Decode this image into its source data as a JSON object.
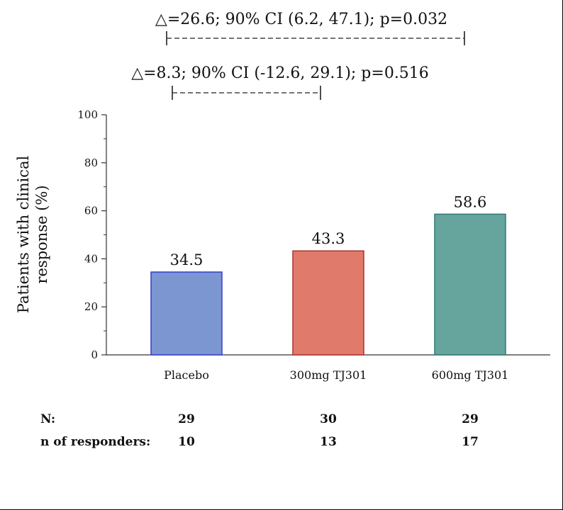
{
  "chart_data": {
    "type": "bar",
    "categories": [
      "Placebo",
      "300mg TJ301",
      "600mg TJ301"
    ],
    "values": [
      34.5,
      43.3,
      58.6
    ],
    "data_labels": [
      "34.5",
      "43.3",
      "58.6"
    ],
    "ylabel_lines": [
      "Patients with clinical",
      "response (%)"
    ],
    "ylim": [
      0,
      100
    ],
    "yticks": [
      0,
      20,
      40,
      60,
      80,
      100
    ],
    "grid": false,
    "colors": {
      "fills": [
        "#7b96d0",
        "#e07b6c",
        "#66a59d"
      ],
      "strokes": [
        "#3a3acc",
        "#b03030",
        "#2f7a70"
      ]
    },
    "comparisons": [
      {
        "label": "△=26.6; 90% CI (6.2, 47.1); p=0.032",
        "from": "Placebo",
        "to": "600mg TJ301"
      },
      {
        "label": "△=8.3; 90% CI (-12.6, 29.1); p=0.516",
        "from": "Placebo",
        "to": "300mg TJ301"
      }
    ]
  },
  "table": {
    "rows": [
      {
        "label": "N:",
        "values": [
          "29",
          "30",
          "29"
        ]
      },
      {
        "label": "n of responders:",
        "values": [
          "10",
          "13",
          "17"
        ]
      }
    ]
  }
}
